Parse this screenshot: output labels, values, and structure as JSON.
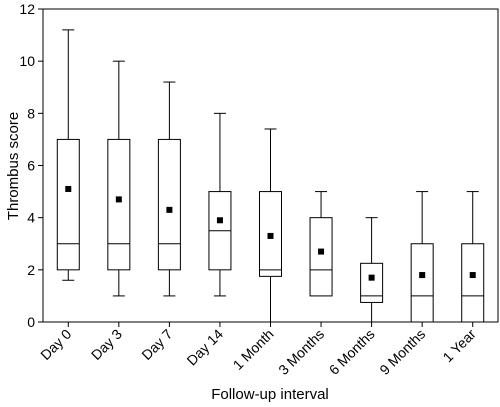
{
  "chart_data": {
    "type": "box",
    "xlabel": "Follow-up interval",
    "ylabel": "Thrombus score",
    "ylim": [
      0,
      12
    ],
    "yticks": [
      0,
      2,
      4,
      6,
      8,
      10,
      12
    ],
    "grid": false,
    "legend": "none",
    "categories": [
      "Day 0",
      "Day 3",
      "Day 7",
      "Day 14",
      "1 Month",
      "3 Months",
      "6 Months",
      "9 Months",
      "1 Year"
    ],
    "boxes": [
      {
        "min": 1.6,
        "q1": 2.0,
        "median": 3.0,
        "q3": 7.0,
        "max": 11.2,
        "mean": 5.1
      },
      {
        "min": 1.0,
        "q1": 2.0,
        "median": 3.0,
        "q3": 7.0,
        "max": 10.0,
        "mean": 4.7
      },
      {
        "min": 1.0,
        "q1": 2.0,
        "median": 3.0,
        "q3": 7.0,
        "max": 9.2,
        "mean": 4.3
      },
      {
        "min": 1.0,
        "q1": 2.0,
        "median": 3.5,
        "q3": 5.0,
        "max": 8.0,
        "mean": 3.9
      },
      {
        "min": 0.0,
        "q1": 1.75,
        "median": 2.0,
        "q3": 5.0,
        "max": 7.4,
        "mean": 3.3
      },
      {
        "min": 1.0,
        "q1": 1.0,
        "median": 2.0,
        "q3": 4.0,
        "max": 5.0,
        "mean": 2.7
      },
      {
        "min": 0.0,
        "q1": 0.75,
        "median": 1.0,
        "q3": 2.25,
        "max": 4.0,
        "mean": 1.7
      },
      {
        "min": 0.0,
        "q1": 0.0,
        "median": 1.0,
        "q3": 3.0,
        "max": 5.0,
        "mean": 1.8
      },
      {
        "min": 0.0,
        "q1": 0.0,
        "median": 1.0,
        "q3": 3.0,
        "max": 5.0,
        "mean": 1.8
      }
    ]
  }
}
